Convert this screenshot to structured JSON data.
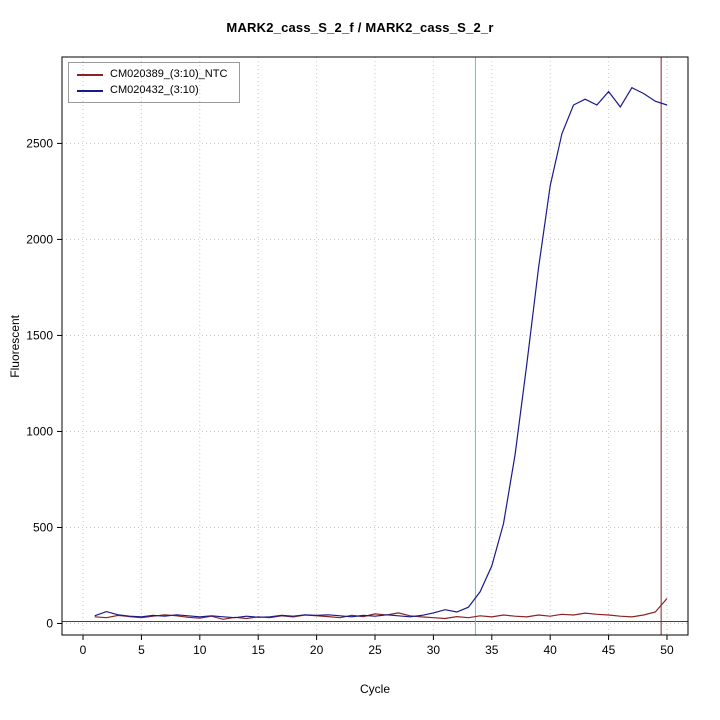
{
  "figure": {
    "title": "MARK2_cass_S_2_f / MARK2_cass_S_2_r",
    "xlabel": "Cycle",
    "ylabel": "Fluorescent"
  },
  "chart_data": {
    "type": "line",
    "title": "MARK2_cass_S_2_f / MARK2_cass_S_2_r",
    "xlabel": "Cycle",
    "ylabel": "Fluorescent",
    "xlim": [
      -1.8,
      51.8
    ],
    "ylim": [
      -60,
      2950
    ],
    "xticks": [
      0,
      5,
      10,
      15,
      20,
      25,
      30,
      35,
      40,
      45,
      50
    ],
    "yticks": [
      0,
      500,
      1000,
      1500,
      2000,
      2500
    ],
    "grid": true,
    "grid_color": "#c8c8c8",
    "legend_position": "top-left",
    "x": [
      1,
      2,
      3,
      4,
      5,
      6,
      7,
      8,
      9,
      10,
      11,
      12,
      13,
      14,
      15,
      16,
      17,
      18,
      19,
      20,
      21,
      22,
      23,
      24,
      25,
      26,
      27,
      28,
      29,
      30,
      31,
      32,
      33,
      34,
      35,
      36,
      37,
      38,
      39,
      40,
      41,
      42,
      43,
      44,
      45,
      46,
      47,
      48,
      49,
      50
    ],
    "series": [
      {
        "name": "CM020389_(3:10)_NTC",
        "color": "#8b2323",
        "values": [
          35,
          30,
          42,
          36,
          30,
          38,
          45,
          40,
          32,
          28,
          38,
          22,
          32,
          26,
          35,
          30,
          40,
          34,
          44,
          40,
          36,
          30,
          42,
          36,
          50,
          44,
          55,
          40,
          34,
          30,
          26,
          36,
          30,
          40,
          34,
          44,
          38,
          34,
          44,
          38,
          48,
          44,
          54,
          48,
          44,
          38,
          34,
          44,
          60,
          130
        ]
      },
      {
        "name": "CM020432_(3:10)",
        "color": "#1a1a8c",
        "values": [
          40,
          62,
          45,
          38,
          35,
          42,
          38,
          45,
          40,
          35,
          40,
          35,
          30,
          38,
          32,
          35,
          42,
          38,
          45,
          42,
          45,
          40,
          35,
          42,
          38,
          45,
          40,
          35,
          42,
          55,
          72,
          60,
          85,
          165,
          300,
          520,
          880,
          1350,
          1850,
          2280,
          2550,
          2700,
          2730,
          2700,
          2770,
          2690,
          2790,
          2760,
          2720,
          2700
        ]
      }
    ],
    "vlines": [
      {
        "x": 33.6,
        "color": "#00eeee"
      },
      {
        "x": 49.5,
        "color": "#8b2323"
      }
    ],
    "hlines": [
      {
        "y": 10,
        "color": "#8b2323"
      }
    ]
  }
}
